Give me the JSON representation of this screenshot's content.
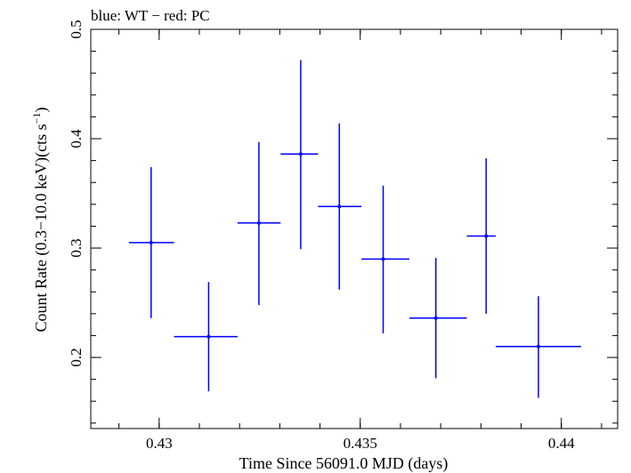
{
  "chart_data": {
    "type": "scatter",
    "title": "blue: WT − red: PC",
    "xlabel": "Time Since 56091.0 MJD (days)",
    "ylabel_main": "Count Rate (0.3−10.0 keV)(cts s",
    "ylabel_sup": "−1",
    "ylabel_close": ")",
    "xlim": [
      0.4283,
      0.4414
    ],
    "ylim": [
      0.135,
      0.5
    ],
    "x_ticks": [
      {
        "value": 0.43,
        "label": "0.43"
      },
      {
        "value": 0.435,
        "label": "0.435"
      },
      {
        "value": 0.44,
        "label": "0.44"
      }
    ],
    "y_ticks": [
      {
        "value": 0.2,
        "label": "0.2"
      },
      {
        "value": 0.3,
        "label": "0.3"
      },
      {
        "value": 0.4,
        "label": "0.4"
      },
      {
        "value": 0.5,
        "label": "0.5"
      }
    ],
    "x_minor_step": 0.001,
    "y_minor_step": 0.02,
    "series": [
      {
        "color": "#0000ff",
        "points": [
          {
            "x": 0.4298,
            "xlo": 0.42925,
            "xhi": 0.43037,
            "y": 0.305,
            "ylo": 0.236,
            "yhi": 0.374
          },
          {
            "x": 0.43123,
            "xlo": 0.43037,
            "xhi": 0.43195,
            "y": 0.219,
            "ylo": 0.169,
            "yhi": 0.269
          },
          {
            "x": 0.43248,
            "xlo": 0.43195,
            "xhi": 0.43302,
            "y": 0.323,
            "ylo": 0.248,
            "yhi": 0.397
          },
          {
            "x": 0.43352,
            "xlo": 0.43302,
            "xhi": 0.43395,
            "y": 0.386,
            "ylo": 0.299,
            "yhi": 0.472
          },
          {
            "x": 0.43448,
            "xlo": 0.43395,
            "xhi": 0.43503,
            "y": 0.338,
            "ylo": 0.262,
            "yhi": 0.414
          },
          {
            "x": 0.43557,
            "xlo": 0.43503,
            "xhi": 0.43622,
            "y": 0.29,
            "ylo": 0.222,
            "yhi": 0.357
          },
          {
            "x": 0.43688,
            "xlo": 0.43622,
            "xhi": 0.43765,
            "y": 0.236,
            "ylo": 0.181,
            "yhi": 0.291
          },
          {
            "x": 0.43813,
            "xlo": 0.43765,
            "xhi": 0.43837,
            "y": 0.311,
            "ylo": 0.24,
            "yhi": 0.382
          },
          {
            "x": 0.43943,
            "xlo": 0.43837,
            "xhi": 0.44049,
            "y": 0.21,
            "ylo": 0.163,
            "yhi": 0.256
          }
        ]
      }
    ]
  }
}
